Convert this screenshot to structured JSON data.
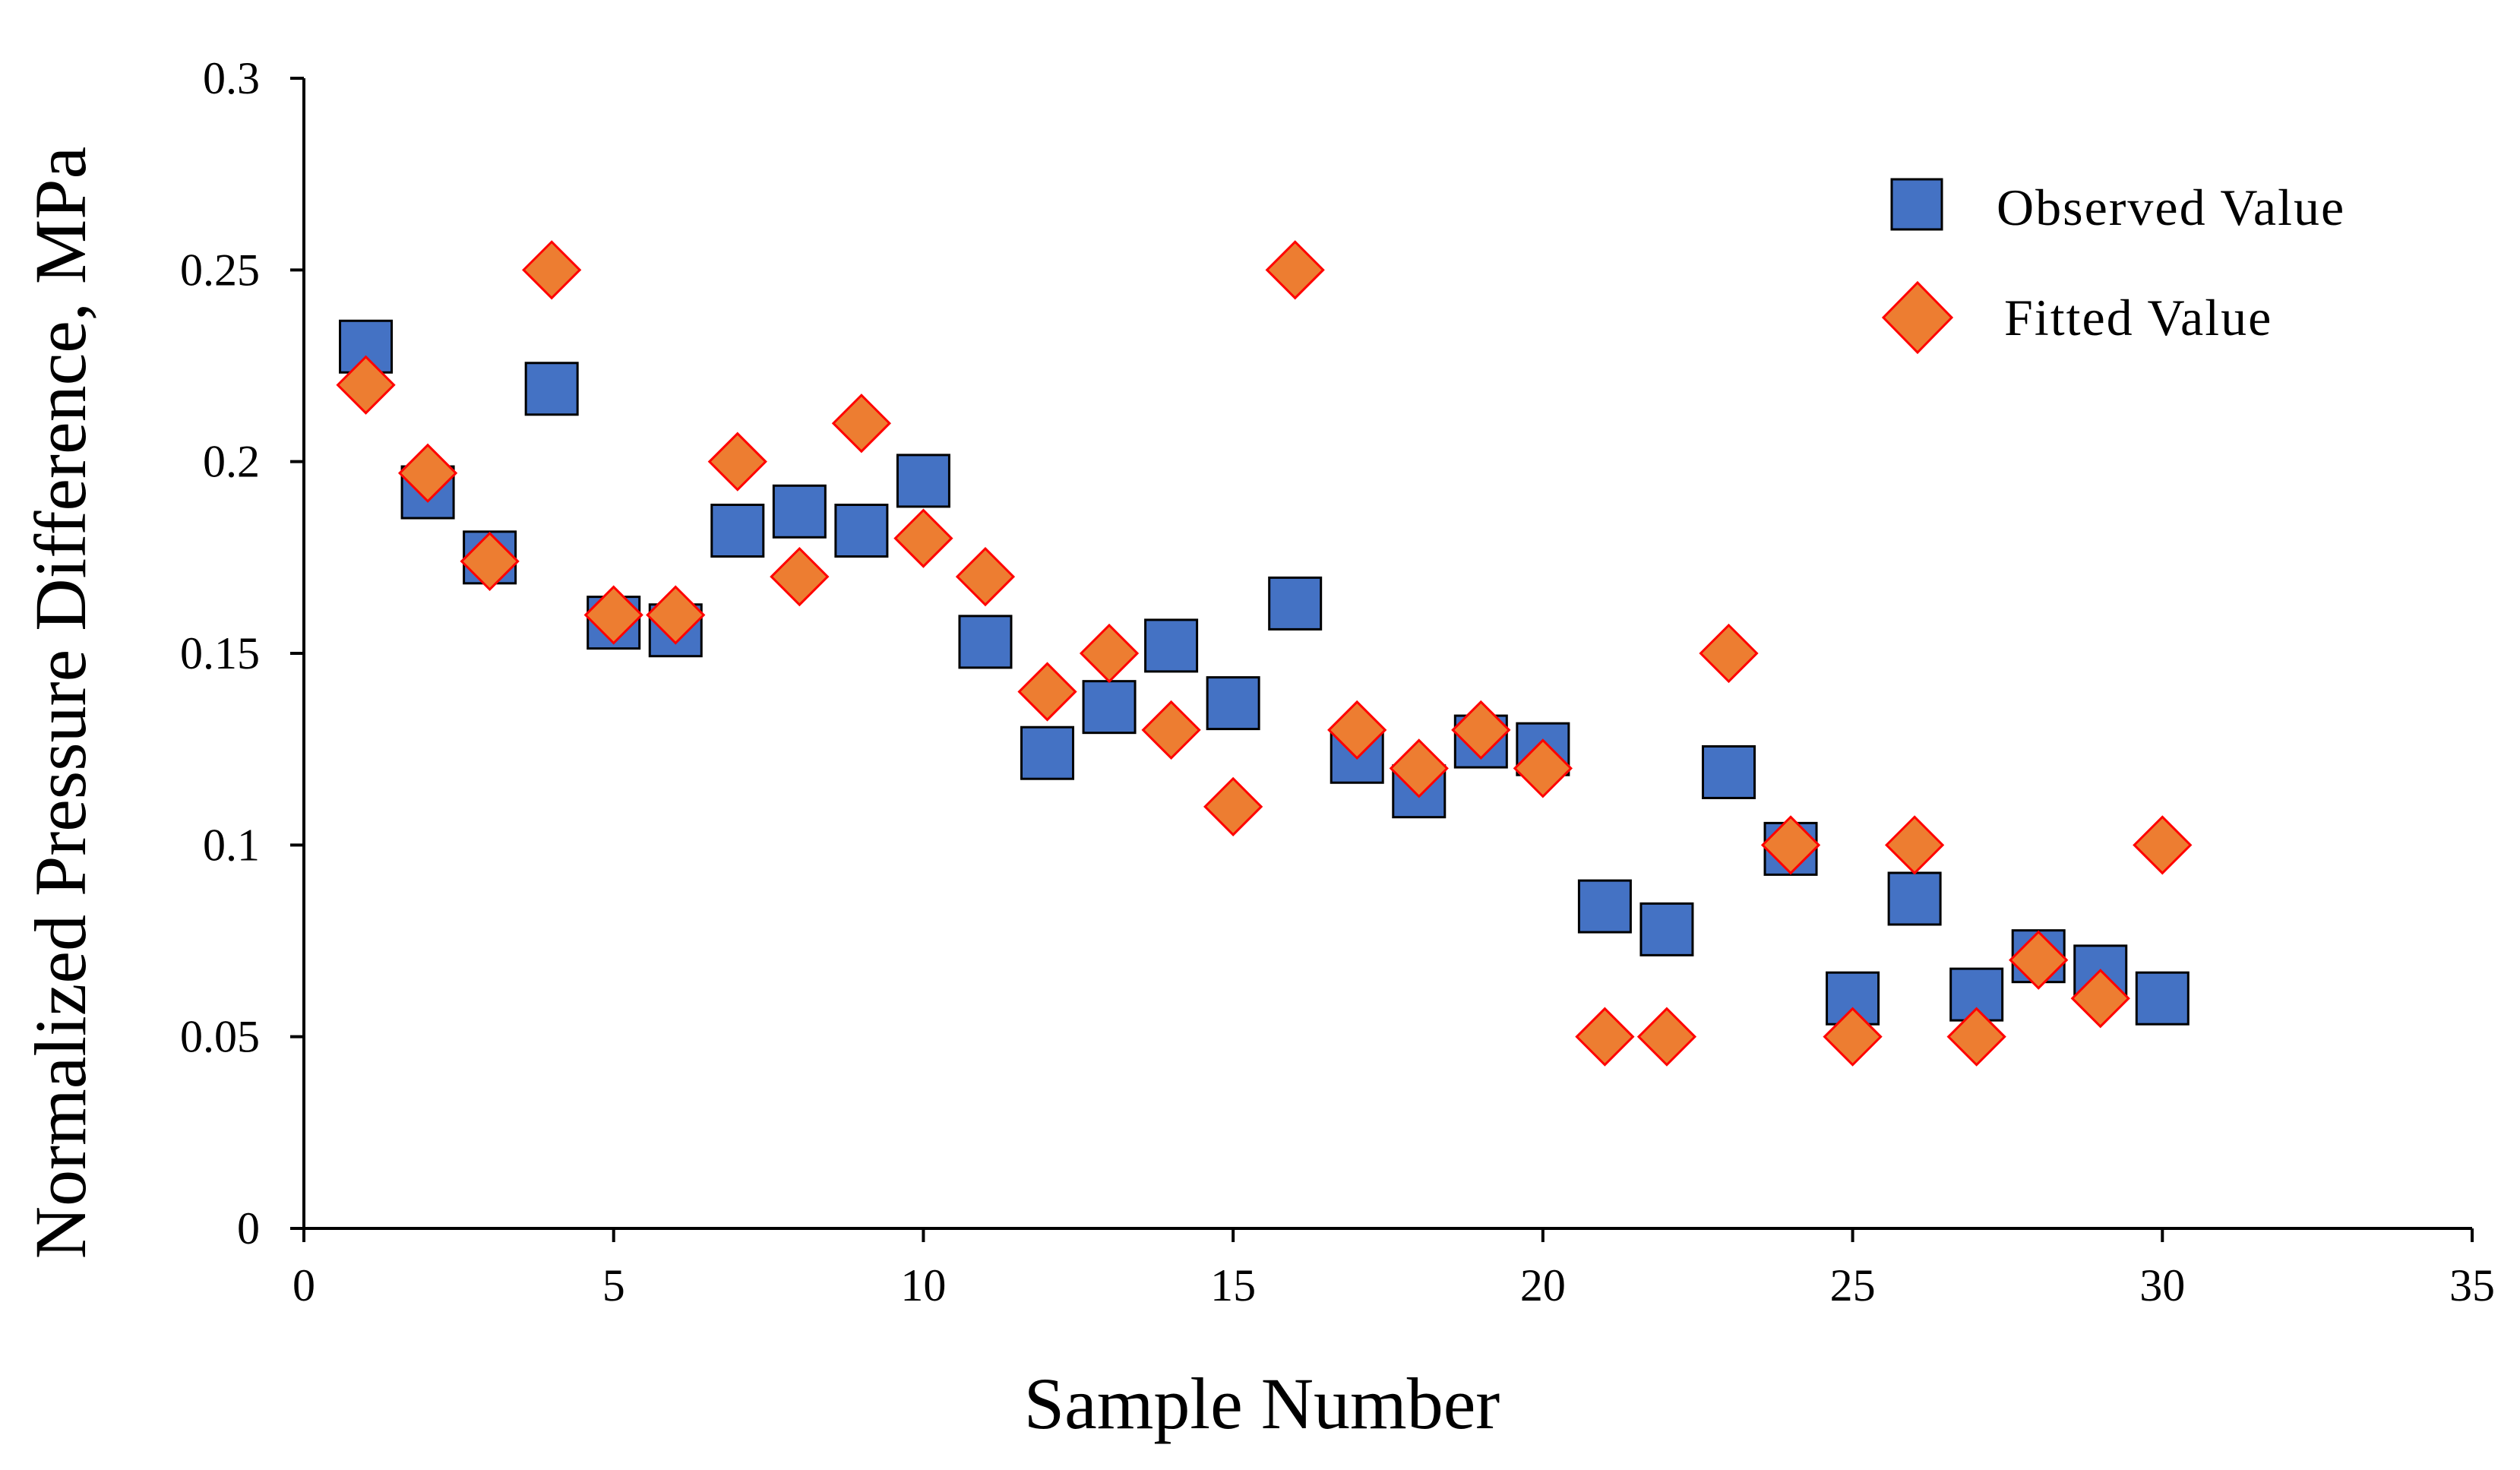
{
  "chart_data": {
    "type": "scatter",
    "title": "",
    "xlabel": "Sample Number",
    "ylabel": "Normalized Pressure Difference, MPa",
    "xlim": [
      0,
      35
    ],
    "ylim": [
      0,
      0.3
    ],
    "x_ticks": [
      0,
      5,
      10,
      15,
      20,
      25,
      30,
      35
    ],
    "y_ticks": [
      0,
      0.05,
      0.1,
      0.15,
      0.2,
      0.25,
      0.3
    ],
    "x_tick_labels": [
      "0",
      "5",
      "10",
      "15",
      "20",
      "25",
      "30",
      "35"
    ],
    "y_tick_labels": [
      "0",
      "0.05",
      "0.1",
      "0.15",
      "0.2",
      "0.25",
      "0.3"
    ],
    "grid": false,
    "legend_position": "top-right",
    "series": [
      {
        "name": "Observed Value",
        "marker": "square",
        "color": "#4472C4",
        "edge_color": "#000000",
        "x": [
          1,
          2,
          3,
          4,
          5,
          6,
          7,
          8,
          9,
          10,
          11,
          12,
          13,
          14,
          15,
          16,
          17,
          18,
          19,
          20,
          21,
          22,
          23,
          24,
          25,
          26,
          27,
          28,
          29,
          30
        ],
        "y": [
          0.23,
          0.192,
          0.175,
          0.219,
          0.158,
          0.156,
          0.182,
          0.187,
          0.182,
          0.195,
          0.153,
          0.124,
          0.136,
          0.152,
          0.137,
          0.163,
          0.123,
          0.114,
          0.127,
          0.125,
          0.084,
          0.078,
          0.119,
          0.099,
          0.06,
          0.086,
          0.061,
          0.071,
          0.067,
          0.06
        ]
      },
      {
        "name": "Fitted Value",
        "marker": "diamond",
        "color": "#ED7D31",
        "edge_color": "#FF0000",
        "x": [
          1,
          2,
          3,
          4,
          5,
          6,
          7,
          8,
          9,
          10,
          11,
          12,
          13,
          14,
          15,
          16,
          17,
          18,
          19,
          20,
          21,
          22,
          23,
          24,
          25,
          26,
          27,
          28,
          29,
          30
        ],
        "y": [
          0.22,
          0.197,
          0.174,
          0.25,
          0.16,
          0.16,
          0.2,
          0.17,
          0.21,
          0.18,
          0.17,
          0.14,
          0.15,
          0.13,
          0.11,
          0.25,
          0.13,
          0.12,
          0.13,
          0.12,
          0.05,
          0.05,
          0.15,
          0.1,
          0.05,
          0.1,
          0.05,
          0.07,
          0.06,
          0.1
        ]
      }
    ]
  }
}
